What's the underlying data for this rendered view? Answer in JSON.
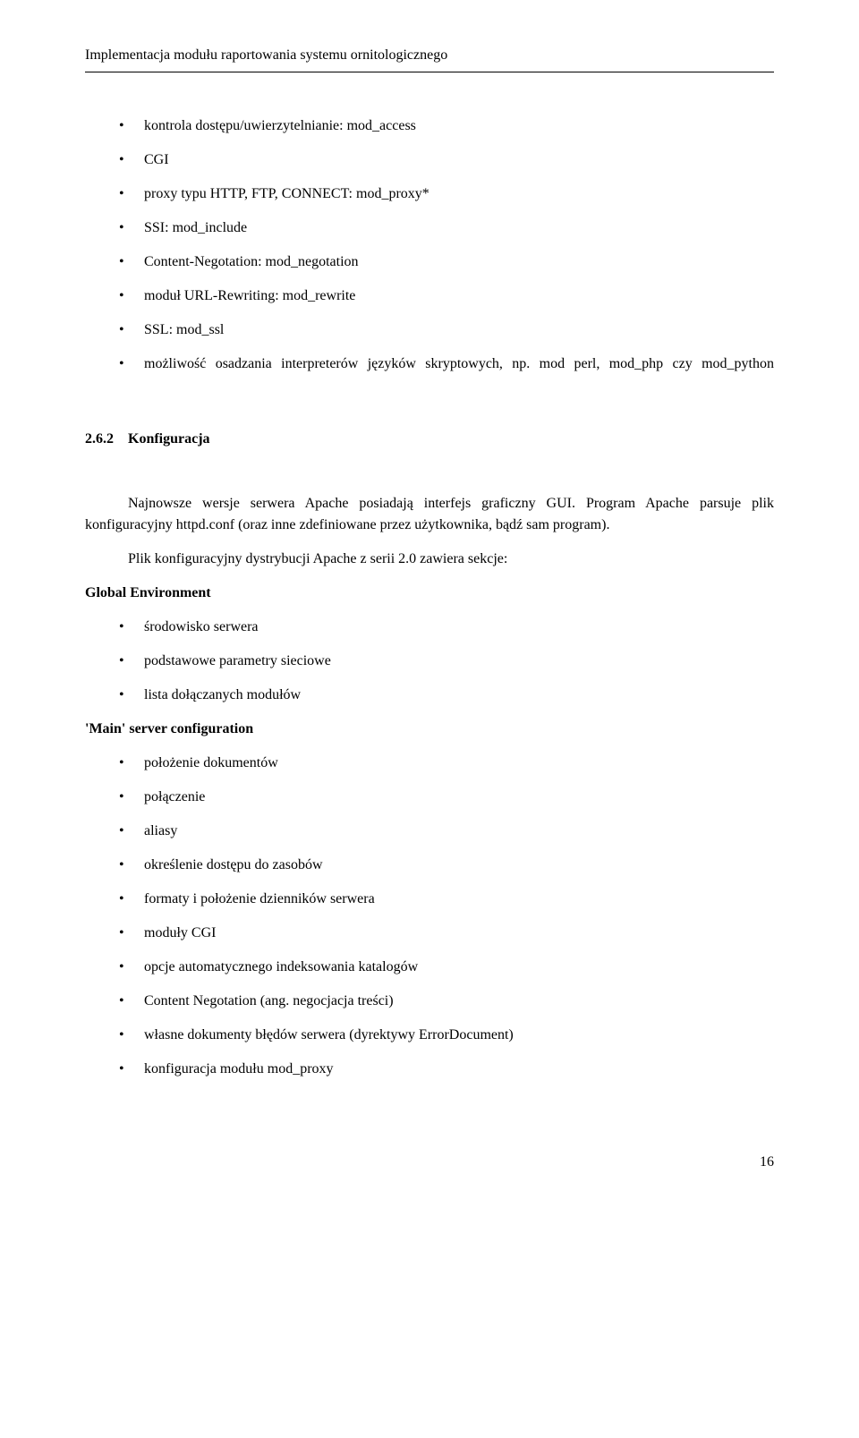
{
  "header": "Implementacja modułu raportowania systemu ornitologicznego",
  "topList": [
    "kontrola dostępu/uwierzytelnianie: mod_access",
    "CGI",
    "proxy typu HTTP, FTP, CONNECT: mod_proxy*",
    "SSI: mod_include",
    "Content-Negotation: mod_negotation",
    "moduł URL-Rewriting: mod_rewrite",
    "SSL: mod_ssl",
    "możliwość osadzania interpreterów języków skryptowych, np. mod perl, mod_php czy mod_python"
  ],
  "sectionNumber": "2.6.2",
  "sectionTitle": "Konfiguracja",
  "para1": "Najnowsze wersje serwera Apache posiadają interfejs graficzny GUI. Program Apache parsuje plik konfiguracyjny httpd.conf (oraz inne zdefiniowane przez użytkownika, bądź sam program).",
  "para2": "Plik konfiguracyjny dystrybucji Apache z serii 2.0 zawiera sekcje:",
  "sub1": "Global Environment",
  "sub1List": [
    "środowisko serwera",
    "podstawowe parametry sieciowe",
    "lista dołączanych modułów"
  ],
  "sub2": "'Main' server configuration",
  "sub2List": [
    "położenie dokumentów",
    "połączenie",
    "aliasy",
    "określenie dostępu do zasobów",
    "formaty i położenie dzienników serwera",
    "moduły CGI",
    "opcje automatycznego indeksowania katalogów",
    "Content Negotation (ang. negocjacja treści)",
    "własne dokumenty błędów serwera (dyrektywy ErrorDocument)",
    "konfiguracja modułu mod_proxy"
  ],
  "pageNumber": "16"
}
